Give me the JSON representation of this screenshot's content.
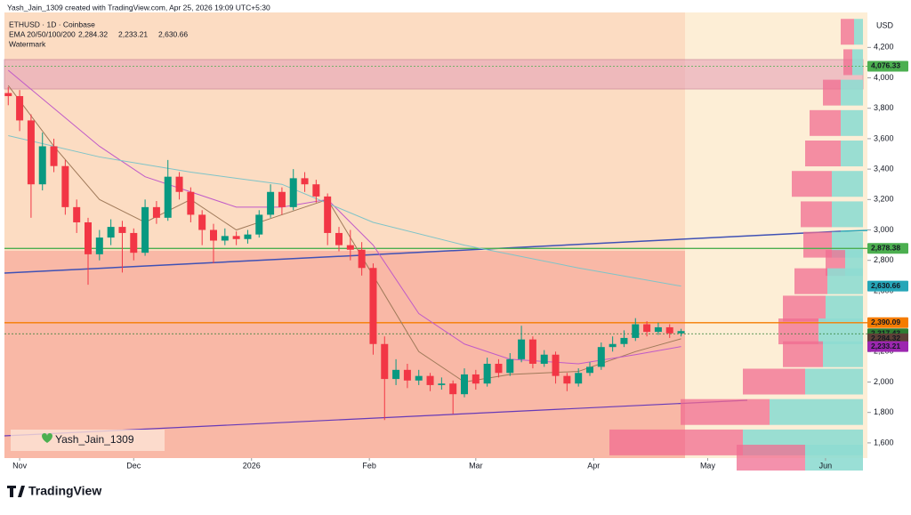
{
  "chart_data": {
    "type": "candlestick",
    "credit": "Yash_Jain_1309 created with TradingView.com, Apr 25, 2026 19:09 UTC+5:30",
    "symbol": "ETHUSD · 1D · Coinbase",
    "indicator": "EMA 20/50/100/200",
    "indicator_values": [
      {
        "label": "2,284.32",
        "color": "#8a6a4e"
      },
      {
        "label": "2,233.21",
        "color": "#9c27b0"
      },
      {
        "label": "2,630.66",
        "color": "#26a6b8"
      }
    ],
    "watermark_label": "Watermark",
    "watermark": "Yash_Jain_1309",
    "currency": "USD",
    "brand": "TradingView",
    "up_color": "#089981",
    "down_color": "#f23645",
    "x": [
      0,
      3,
      6,
      9,
      12,
      15,
      18,
      21,
      24,
      27,
      30,
      33,
      36,
      39,
      42,
      45,
      48,
      51,
      54,
      57,
      60,
      63,
      66,
      69,
      72,
      75,
      78,
      81,
      84,
      87,
      90,
      93,
      96,
      99,
      102,
      105,
      108,
      111,
      114,
      117,
      120,
      123,
      126,
      129,
      132,
      135,
      138,
      141,
      144,
      147,
      150,
      153,
      156,
      159,
      162,
      165,
      168,
      171,
      174,
      177
    ],
    "open": [
      3900,
      3880,
      3720,
      3300,
      3550,
      3420,
      3150,
      3050,
      2840,
      2950,
      3020,
      2980,
      2850,
      3150,
      3080,
      3350,
      3250,
      3100,
      3000,
      2930,
      2960,
      2940,
      2970,
      3100,
      3250,
      3150,
      3340,
      3300,
      3220,
      2980,
      2900,
      2870,
      2750,
      2250,
      2020,
      2080,
      2010,
      2040,
      1980,
      1990,
      1920,
      2050,
      1990,
      2120,
      2060,
      2150,
      2280,
      2120,
      2180,
      2040,
      1990,
      2060,
      2100,
      2230,
      2250,
      2290,
      2380,
      2330,
      2360,
      2320
    ],
    "high": [
      3940,
      3920,
      3760,
      3640,
      3600,
      3460,
      3200,
      3080,
      3000,
      3070,
      3060,
      3010,
      3200,
      3190,
      3460,
      3380,
      3280,
      3130,
      3040,
      3010,
      2990,
      3000,
      3130,
      3300,
      3280,
      3400,
      3380,
      3330,
      3240,
      3020,
      3000,
      2920,
      2780,
      2300,
      2150,
      2120,
      2080,
      2060,
      2030,
      2010,
      2090,
      2080,
      2160,
      2150,
      2190,
      2370,
      2300,
      2210,
      2200,
      2060,
      2090,
      2130,
      2260,
      2300,
      2340,
      2420,
      2400,
      2390,
      2380,
      2350
    ],
    "low": [
      3820,
      3650,
      3080,
      3260,
      3380,
      3100,
      2980,
      2640,
      2800,
      2900,
      2720,
      2800,
      2830,
      3040,
      3060,
      3200,
      3050,
      2900,
      2780,
      2900,
      2900,
      2910,
      2950,
      3080,
      3100,
      3130,
      3250,
      3180,
      2900,
      2860,
      2800,
      2700,
      2180,
      1750,
      1980,
      1960,
      1980,
      1940,
      1950,
      1790,
      1900,
      1950,
      1970,
      2030,
      2040,
      2130,
      2090,
      2100,
      1990,
      1940,
      1970,
      2040,
      2080,
      2200,
      2230,
      2270,
      2300,
      2310,
      2290,
      2300
    ],
    "close": [
      3880,
      3720,
      3300,
      3550,
      3420,
      3150,
      3050,
      2840,
      2950,
      3020,
      2980,
      2850,
      3150,
      3080,
      3350,
      3250,
      3100,
      3000,
      2930,
      2960,
      2940,
      2970,
      3100,
      3250,
      3150,
      3340,
      3300,
      3220,
      2980,
      2900,
      2870,
      2750,
      2250,
      2020,
      2080,
      2010,
      2040,
      1980,
      1990,
      1920,
      2050,
      1990,
      2120,
      2060,
      2150,
      2280,
      2120,
      2180,
      2040,
      1990,
      2060,
      2100,
      2230,
      2250,
      2290,
      2380,
      2330,
      2360,
      2320,
      2335
    ],
    "ema": [
      {
        "color": "#a07a5a",
        "x": [
          0,
          12,
          24,
          36,
          48,
          60,
          72,
          84,
          96,
          108,
          120,
          132,
          150,
          165,
          177
        ],
        "values": [
          3950,
          3550,
          3200,
          3050,
          3200,
          3000,
          3100,
          3200,
          2700,
          2200,
          2000,
          2050,
          2070,
          2200,
          2284.32
        ]
      },
      {
        "color": "#c05ac8",
        "x": [
          0,
          12,
          24,
          36,
          48,
          60,
          72,
          84,
          96,
          108,
          120,
          132,
          150,
          165,
          177
        ],
        "values": [
          4050,
          3800,
          3550,
          3350,
          3250,
          3150,
          3150,
          3200,
          2900,
          2450,
          2250,
          2150,
          2120,
          2180,
          2233.21
        ]
      },
      {
        "color": "#7fc4c8",
        "x": [
          0,
          24,
          48,
          72,
          96,
          120,
          150,
          177
        ],
        "values": [
          3620,
          3480,
          3380,
          3300,
          3050,
          2900,
          2750,
          2630.66
        ]
      }
    ],
    "volume_profile": {
      "prices": [
        4300,
        4100,
        3900,
        3700,
        3500,
        3300,
        3100,
        2900,
        2780,
        2660,
        2480,
        2330,
        2180,
        2000,
        1800,
        1600,
        1500
      ],
      "up": [
        10,
        12,
        25,
        25,
        25,
        35,
        35,
        35,
        20,
        40,
        42,
        50,
        45,
        65,
        105,
        135,
        65
      ],
      "down": [
        15,
        10,
        20,
        35,
        40,
        45,
        35,
        32,
        22,
        37,
        48,
        45,
        45,
        70,
        100,
        150,
        77
      ]
    },
    "price_tags": [
      {
        "label": "4,076.33",
        "value": 4076.33,
        "color": "#4caf50",
        "line": "dotted"
      },
      {
        "label": "2,878.38",
        "value": 2878.38,
        "color": "#4caf50",
        "line": "solid"
      },
      {
        "label": "2,630.66",
        "value": 2630.66,
        "color": "#26a6b8"
      },
      {
        "label": "2,390.09",
        "value": 2390.09,
        "color": "#f57c00",
        "line": "solid"
      },
      {
        "label": "2,317.43",
        "value": 2317.43,
        "color": "#2e7d32",
        "line": "dotted"
      },
      {
        "label": "2,284.32",
        "value": 2284.32,
        "color": "#5d4037"
      },
      {
        "label": "2,233.21",
        "value": 2233.21,
        "color": "#9c27b0"
      }
    ],
    "xlim": [
      -1,
      219
    ],
    "ylim": [
      1500,
      4430
    ],
    "xticks": [
      {
        "value": 3,
        "label": "Nov"
      },
      {
        "value": 33,
        "label": "Dec"
      },
      {
        "value": 64,
        "label": "2026"
      },
      {
        "value": 95,
        "label": "Feb"
      },
      {
        "value": 123,
        "label": "Mar"
      },
      {
        "value": 154,
        "label": "Apr"
      },
      {
        "value": 184,
        "label": "May"
      },
      {
        "value": 215,
        "label": "Jun"
      }
    ],
    "yticks": [
      {
        "value": 4200,
        "label": "4,200"
      },
      {
        "value": 4000,
        "label": "4,000"
      },
      {
        "value": 3800,
        "label": "3,800"
      },
      {
        "value": 3600,
        "label": "3,600"
      },
      {
        "value": 3400,
        "label": "3,400"
      },
      {
        "value": 3200,
        "label": "3,200"
      },
      {
        "value": 3000,
        "label": "3,000"
      },
      {
        "value": 2800,
        "label": "2,800"
      },
      {
        "value": 2600,
        "label": "2,600"
      },
      {
        "value": 2400,
        "label": "2,400"
      },
      {
        "value": 2200,
        "label": "2,200"
      },
      {
        "value": 2000,
        "label": "2,000"
      },
      {
        "value": 1800,
        "label": "1,800"
      },
      {
        "value": 1600,
        "label": "1,600"
      }
    ]
  }
}
